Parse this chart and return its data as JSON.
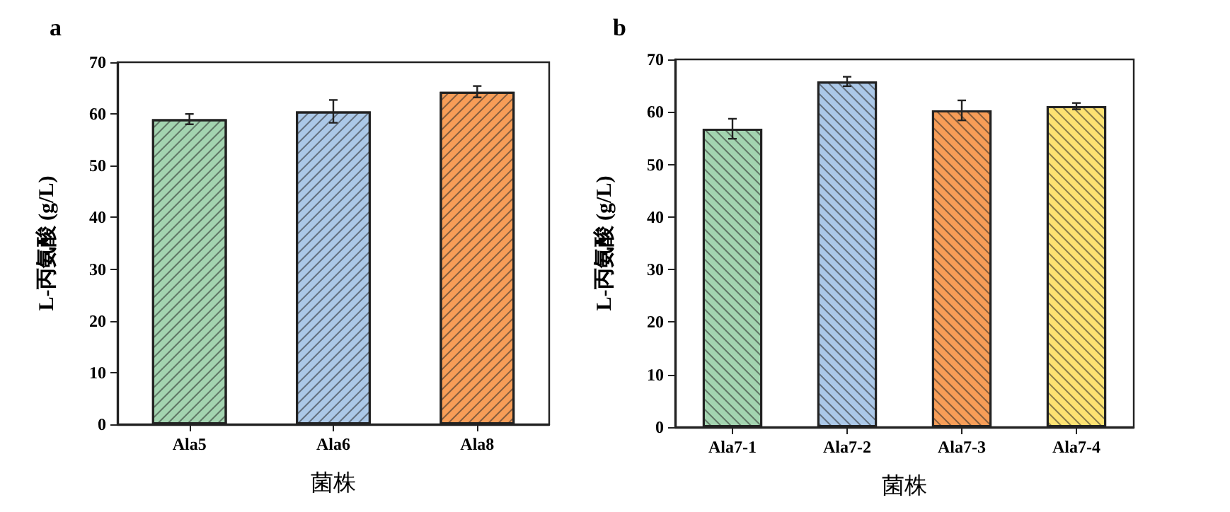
{
  "chart_data": [
    {
      "type": "bar",
      "title": "a",
      "xlabel": "菌株",
      "ylabel": "L-丙氨酸 (g/L)",
      "categories": [
        "Ala5",
        "Ala6",
        "Ala8"
      ],
      "values": [
        59.0,
        60.5,
        64.3
      ],
      "errors": [
        1.0,
        2.2,
        1.1
      ],
      "colors": [
        "#a3d4b0",
        "#abc8e8",
        "#f79d57"
      ],
      "ylim": [
        0,
        70
      ],
      "yticks": [
        0,
        10,
        20,
        30,
        40,
        50,
        60,
        70
      ]
    },
    {
      "type": "bar",
      "title": "b",
      "xlabel": "菌株",
      "ylabel": "L-丙氨酸 (g/L)",
      "categories": [
        "Ala7-1",
        "Ala7-2",
        "Ala7-3",
        "Ala7-4"
      ],
      "values": [
        56.8,
        65.8,
        60.3,
        61.1
      ],
      "errors": [
        1.9,
        0.9,
        1.9,
        0.6
      ],
      "colors": [
        "#a3d4b0",
        "#abc8e8",
        "#f79d57",
        "#fde272"
      ],
      "ylim": [
        0,
        70
      ],
      "yticks": [
        0,
        10,
        20,
        30,
        40,
        50,
        60,
        70
      ]
    }
  ]
}
